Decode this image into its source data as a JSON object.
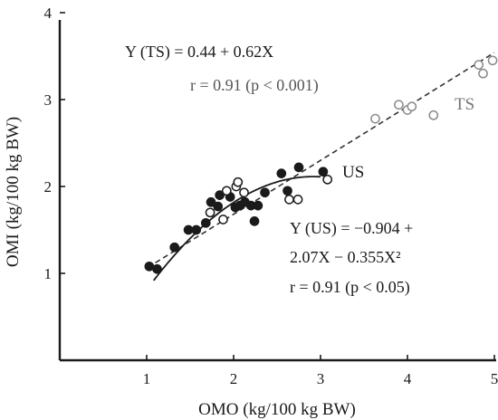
{
  "chart_data": {
    "type": "scatter",
    "title": "",
    "xlabel": "OMO (kg/100 kg BW)",
    "ylabel": "OMI (kg/100 kg BW)",
    "xlim": [
      0,
      5
    ],
    "ylim": [
      0,
      4
    ],
    "x_ticks": [
      1,
      2,
      3,
      4,
      5
    ],
    "y_ticks": [
      1,
      2,
      3,
      4
    ],
    "x_tick_labels": [
      "1",
      "2",
      "3",
      "4",
      "5"
    ],
    "y_tick_labels": [
      "1",
      "2",
      "3",
      "4"
    ],
    "grid": false,
    "series": [
      {
        "name": "US",
        "marker": "filled-circle",
        "color": "#1a1a1a",
        "points": [
          {
            "x": 1.03,
            "y": 1.08
          },
          {
            "x": 1.12,
            "y": 1.05
          },
          {
            "x": 1.32,
            "y": 1.3
          },
          {
            "x": 1.48,
            "y": 1.5
          },
          {
            "x": 1.57,
            "y": 1.5
          },
          {
            "x": 1.68,
            "y": 1.58
          },
          {
            "x": 1.74,
            "y": 1.82
          },
          {
            "x": 1.82,
            "y": 1.77
          },
          {
            "x": 1.84,
            "y": 1.9
          },
          {
            "x": 1.96,
            "y": 1.88
          },
          {
            "x": 2.02,
            "y": 1.76
          },
          {
            "x": 2.07,
            "y": 1.78
          },
          {
            "x": 2.13,
            "y": 1.82
          },
          {
            "x": 2.2,
            "y": 1.78
          },
          {
            "x": 2.24,
            "y": 1.6
          },
          {
            "x": 2.28,
            "y": 1.78
          },
          {
            "x": 2.36,
            "y": 1.93
          },
          {
            "x": 2.55,
            "y": 2.15
          },
          {
            "x": 2.62,
            "y": 1.95
          },
          {
            "x": 2.75,
            "y": 2.22
          },
          {
            "x": 3.03,
            "y": 2.17
          }
        ]
      },
      {
        "name": "US",
        "marker": "open-circle",
        "color": "#1a1a1a",
        "points": [
          {
            "x": 1.73,
            "y": 1.7
          },
          {
            "x": 1.88,
            "y": 1.62
          },
          {
            "x": 1.92,
            "y": 1.95
          },
          {
            "x": 2.03,
            "y": 2.0
          },
          {
            "x": 2.05,
            "y": 2.05
          },
          {
            "x": 2.12,
            "y": 1.93
          },
          {
            "x": 2.64,
            "y": 1.85
          },
          {
            "x": 2.74,
            "y": 1.85
          },
          {
            "x": 3.08,
            "y": 2.08
          }
        ]
      },
      {
        "name": "TS",
        "marker": "open-circle",
        "color": "#8a8a8a",
        "points": [
          {
            "x": 3.63,
            "y": 2.78
          },
          {
            "x": 3.9,
            "y": 2.94
          },
          {
            "x": 4.0,
            "y": 2.88
          },
          {
            "x": 4.05,
            "y": 2.92
          },
          {
            "x": 4.3,
            "y": 2.82
          },
          {
            "x": 4.82,
            "y": 3.4
          },
          {
            "x": 4.87,
            "y": 3.3
          },
          {
            "x": 4.98,
            "y": 3.45
          }
        ]
      }
    ],
    "fits": [
      {
        "name": "TS",
        "kind": "linear",
        "style": "dashed",
        "intercept": 0.44,
        "slope": 0.62,
        "x_range": [
          1.1,
          5.0
        ],
        "equation_lines": [
          "Y (TS) = 0.44 + 0.62X",
          "r = 0.91 (p < 0.001)"
        ]
      },
      {
        "name": "US",
        "kind": "quadratic",
        "style": "solid",
        "a": -0.904,
        "b": 2.07,
        "c": -0.355,
        "x_range": [
          1.08,
          3.0
        ],
        "equation_lines": [
          "Y (US) = −0.904 +",
          "2.07X − 0.355X²",
          "r = 0.91 (p < 0.05)"
        ]
      }
    ],
    "legend": "annotations beside data"
  }
}
